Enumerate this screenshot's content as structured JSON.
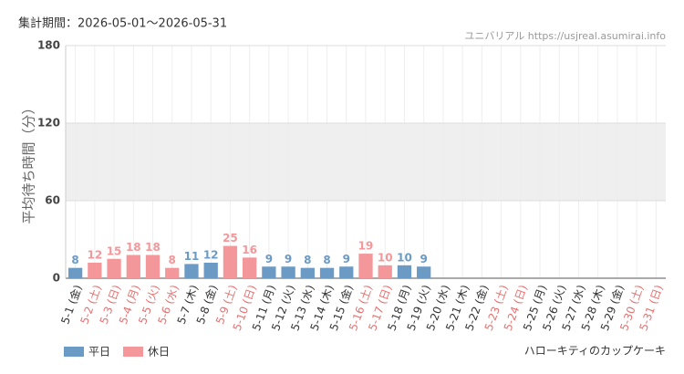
{
  "chart_data": {
    "type": "bar",
    "period": "集計期間：2026-05-01〜2026-05-31",
    "source": "ユニバリアル https://usjreal.asumirai.info",
    "attraction": "ハローキティのカップケーキ",
    "y_label": "平均待ち時間（分）",
    "categories": [
      "5-1 (金)",
      "5-2 (土)",
      "5-3 (日)",
      "5-4 (月)",
      "5-5 (火)",
      "5-6 (水)",
      "5-7 (木)",
      "5-8 (金)",
      "5-9 (土)",
      "5-10 (日)",
      "5-11 (月)",
      "5-12 (火)",
      "5-13 (水)",
      "5-14 (木)",
      "5-15 (金)",
      "5-16 (土)",
      "5-17 (日)",
      "5-18 (月)",
      "5-19 (火)",
      "5-20 (水)",
      "5-21 (木)",
      "5-22 (金)",
      "5-23 (土)",
      "5-24 (日)",
      "5-25 (月)",
      "5-26 (火)",
      "5-27 (水)",
      "5-28 (木)",
      "5-29 (金)",
      "5-30 (土)",
      "5-31 (日)"
    ],
    "category_is_holiday": [
      false,
      true,
      true,
      true,
      true,
      true,
      false,
      false,
      true,
      true,
      false,
      false,
      false,
      false,
      false,
      true,
      true,
      false,
      false,
      false,
      false,
      false,
      true,
      true,
      false,
      false,
      false,
      false,
      false,
      true,
      true
    ],
    "holiday_label_color": "#e87070",
    "series": [
      {
        "name": "平日",
        "color": "#6b9ac4",
        "values": [
          8,
          null,
          null,
          null,
          null,
          null,
          11,
          12,
          null,
          null,
          9,
          9,
          8,
          8,
          9,
          null,
          null,
          10,
          9,
          null,
          null,
          null,
          null,
          null,
          null,
          null,
          null,
          null,
          null,
          null,
          null
        ]
      },
      {
        "name": "休日",
        "color": "#f4979a",
        "values": [
          null,
          12,
          15,
          18,
          18,
          8,
          null,
          null,
          25,
          16,
          null,
          null,
          null,
          null,
          null,
          19,
          10,
          null,
          null,
          null,
          null,
          null,
          null,
          null,
          null,
          null,
          null,
          null,
          null,
          null,
          null
        ]
      }
    ],
    "ylim": [
      0,
      180
    ],
    "yticks": [
      0,
      60,
      120,
      180
    ],
    "band": [
      60,
      120
    ],
    "band_color": "#efefef",
    "grid": true
  }
}
